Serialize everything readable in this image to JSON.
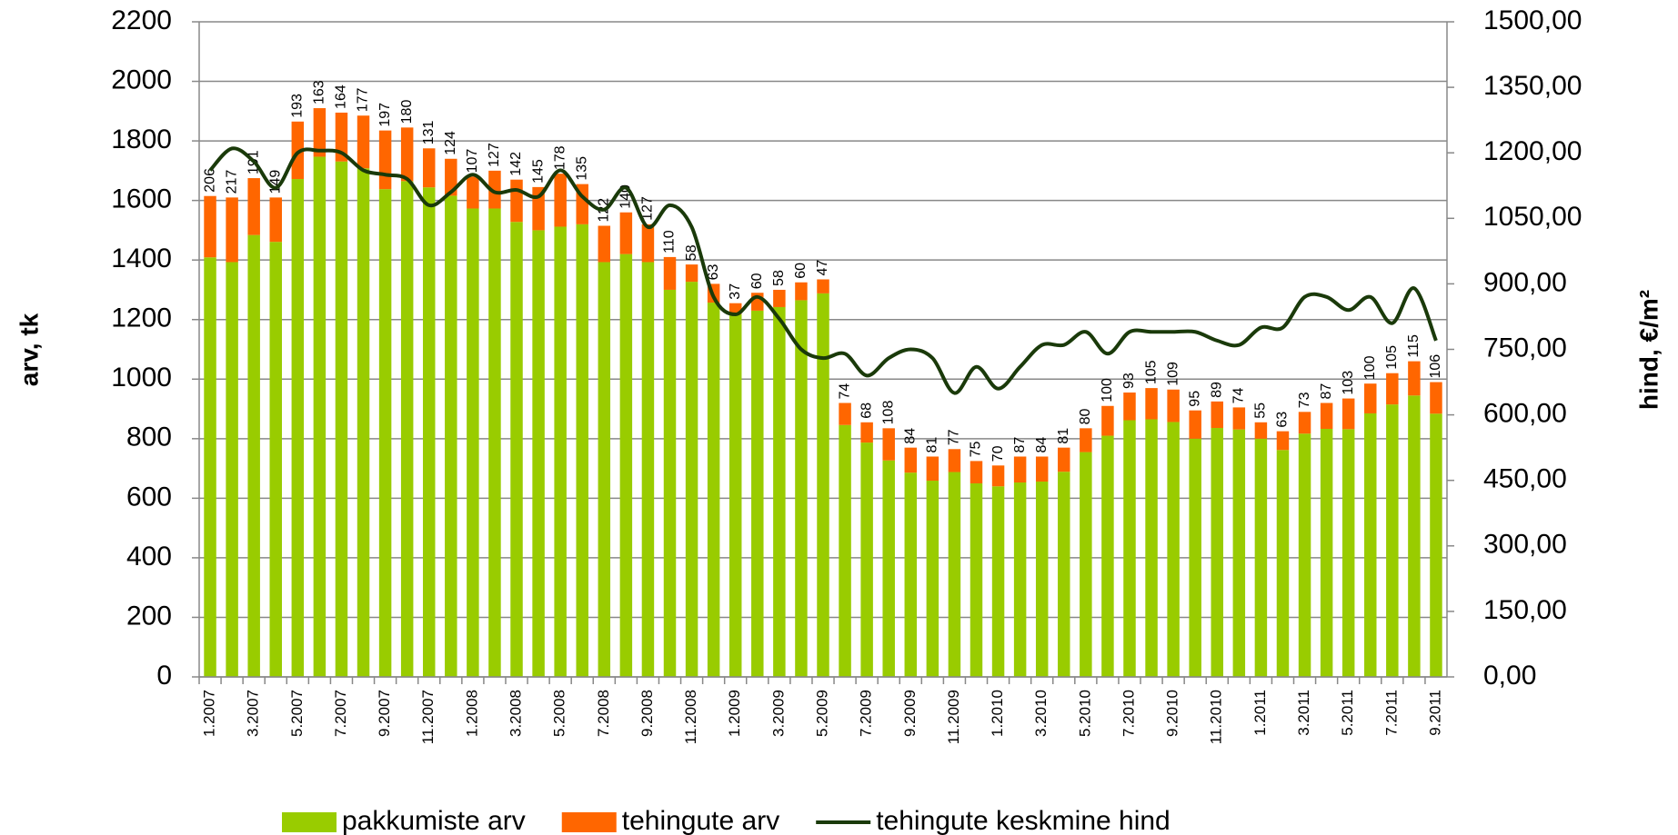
{
  "chart_data": {
    "type": "bar",
    "categories": [
      "1.2007",
      null,
      "3.2007",
      null,
      "5.2007",
      null,
      "7.2007",
      null,
      "9.2007",
      null,
      "11.2007",
      null,
      "1.2008",
      null,
      "3.2008",
      null,
      "5.2008",
      null,
      "7.2008",
      null,
      "9.2008",
      null,
      "11.2008",
      null,
      "1.2009",
      null,
      "3.2009",
      null,
      "5.2009",
      null,
      "7.2009",
      null,
      "9.2009",
      null,
      "11.2009",
      null,
      "1.2010",
      null,
      "3.2010",
      null,
      "5.2010",
      null,
      "7.2010",
      null,
      "9.2010",
      null,
      "11.2010",
      null,
      "1.2011",
      null,
      "3.2011",
      null,
      "5.2011",
      null,
      "7.2011",
      null,
      "9.2011"
    ],
    "series": [
      {
        "name": "pakkumiste arv",
        "color": "#99cc00",
        "stacked": true,
        "values": [
          1409,
          1393,
          1484,
          1461,
          1672,
          1747,
          1731,
          1708,
          1638,
          1665,
          1644,
          1616,
          1573,
          1573,
          1528,
          1500,
          1512,
          1520,
          1393,
          1420,
          1393,
          1300,
          1327,
          1257,
          1218,
          1230,
          1242,
          1265,
          1288,
          846,
          787,
          727,
          686,
          659,
          688,
          650,
          640,
          653,
          656,
          689,
          755,
          810,
          862,
          865,
          856,
          800,
          836,
          831,
          800,
          762,
          817,
          833,
          832,
          885,
          915,
          945,
          884
        ]
      },
      {
        "name": "tehingute arv",
        "color": "#ff6600",
        "stacked": true,
        "show_labels": true,
        "values": [
          206,
          217,
          191,
          149,
          193,
          163,
          164,
          177,
          197,
          180,
          131,
          124,
          107,
          127,
          142,
          145,
          178,
          135,
          122,
          140,
          127,
          110,
          58,
          63,
          37,
          60,
          58,
          60,
          47,
          74,
          68,
          108,
          84,
          81,
          77,
          75,
          70,
          87,
          84,
          81,
          80,
          100,
          93,
          105,
          109,
          95,
          89,
          74,
          55,
          63,
          73,
          87,
          103,
          100,
          105,
          115,
          106
        ]
      },
      {
        "name": "tehingute keskmine hind",
        "color": "#1a3a0a",
        "type": "line",
        "axis": "y2",
        "values": [
          1160,
          1210,
          1180,
          1120,
          1200,
          1205,
          1200,
          1160,
          1150,
          1140,
          1080,
          1110,
          1150,
          1110,
          1115,
          1100,
          1160,
          1100,
          1070,
          1120,
          1030,
          1080,
          1030,
          870,
          830,
          870,
          820,
          750,
          730,
          740,
          690,
          730,
          750,
          730,
          650,
          710,
          660,
          710,
          760,
          760,
          790,
          740,
          790,
          790,
          790,
          790,
          770,
          760,
          800,
          800,
          870,
          870,
          840,
          870,
          810,
          890,
          770
        ]
      }
    ],
    "y_label": "arv, tk",
    "y2_label": "hind, €/m²",
    "ylim": [
      0,
      2200
    ],
    "yticks": [
      0,
      200,
      400,
      600,
      800,
      1000,
      1200,
      1400,
      1600,
      1800,
      2000,
      2200
    ],
    "y2lim": [
      0,
      1500
    ],
    "y2ticks": [
      {
        "value": 0,
        "label": "0,00"
      },
      {
        "value": 150,
        "label": "150,00"
      },
      {
        "value": 300,
        "label": "300,00"
      },
      {
        "value": 450,
        "label": "450,00"
      },
      {
        "value": 600,
        "label": "600,00"
      },
      {
        "value": 750,
        "label": "750,00"
      },
      {
        "value": 900,
        "label": "900,00"
      },
      {
        "value": 1050,
        "label": "1050,00"
      },
      {
        "value": 1200,
        "label": "1200,00"
      },
      {
        "value": 1350,
        "label": "1350,00"
      },
      {
        "value": 1500,
        "label": "1500,00"
      }
    ],
    "grid": true,
    "legend": "bottom"
  }
}
